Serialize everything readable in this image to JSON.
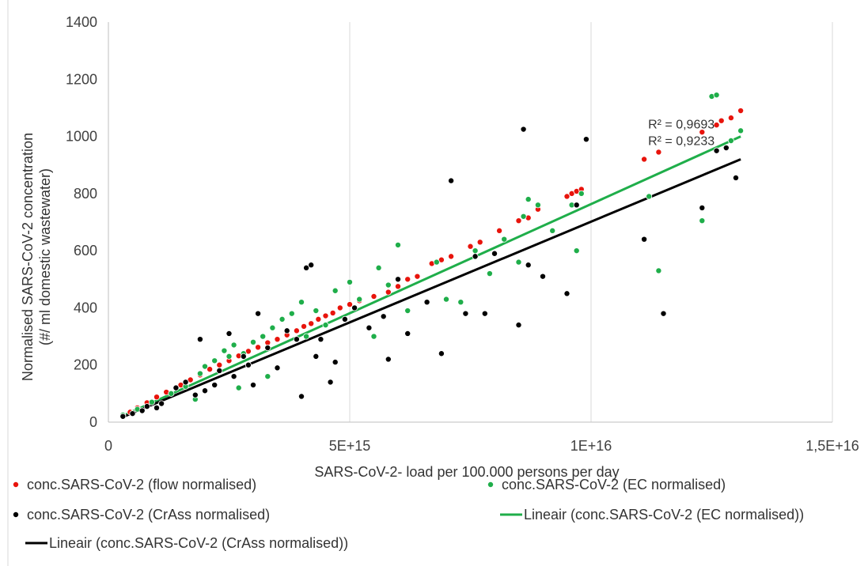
{
  "chart_data": {
    "type": "scatter",
    "title": "",
    "xlabel": "SARS-CoV-2- load per 100.000 persons per day",
    "ylabel_line1": "Normalised SARS-CoV-2 concentration",
    "ylabel_line2": "(#/ ml domestic wastewater)",
    "xlim": [
      0,
      1.5e+16
    ],
    "ylim": [
      0,
      1400
    ],
    "x_ticks": [
      0,
      5000000000000000.0,
      1e+16,
      1.5e+16
    ],
    "x_tick_labels": [
      "0",
      "5E+15",
      "1E+16",
      "1,5E+16"
    ],
    "y_ticks": [
      0,
      200,
      400,
      600,
      800,
      1000,
      1200,
      1400
    ],
    "y_tick_labels": [
      "0",
      "200",
      "400",
      "600",
      "800",
      "1000",
      "1200",
      "1400"
    ],
    "grid": "vertical",
    "legend_position": "bottom",
    "series": [
      {
        "name": "conc.SARS-CoV-2 (flow normalised)",
        "color": "#e8140c",
        "points": [
          [
            300000000000000.0,
            22
          ],
          [
            450000000000000.0,
            35
          ],
          [
            600000000000000.0,
            50
          ],
          [
            800000000000000.0,
            68
          ],
          [
            1000000000000000.0,
            88
          ],
          [
            1200000000000000.0,
            105
          ],
          [
            1500000000000000.0,
            130
          ],
          [
            1700000000000000.0,
            148
          ],
          [
            1900000000000000.0,
            165
          ],
          [
            2100000000000000.0,
            185
          ],
          [
            2300000000000000.0,
            200
          ],
          [
            2500000000000000.0,
            215
          ],
          [
            2700000000000000.0,
            232
          ],
          [
            2900000000000000.0,
            248
          ],
          [
            3100000000000000.0,
            262
          ],
          [
            3300000000000000.0,
            278
          ],
          [
            3500000000000000.0,
            290
          ],
          [
            3700000000000000.0,
            305
          ],
          [
            3900000000000000.0,
            320
          ],
          [
            4050000000000000.0,
            335
          ],
          [
            4200000000000000.0,
            345
          ],
          [
            4350000000000000.0,
            360
          ],
          [
            4500000000000000.0,
            372
          ],
          [
            4650000000000000.0,
            382
          ],
          [
            4800000000000000.0,
            400
          ],
          [
            5000000000000000.0,
            412
          ],
          [
            5200000000000000.0,
            425
          ],
          [
            5500000000000000.0,
            440
          ],
          [
            5800000000000000.0,
            455
          ],
          [
            6000000000000000.0,
            475
          ],
          [
            6200000000000000.0,
            500
          ],
          [
            6400000000000000.0,
            510
          ],
          [
            6700000000000000.0,
            555
          ],
          [
            6900000000000000.0,
            568
          ],
          [
            7100000000000000.0,
            580
          ],
          [
            7500000000000000.0,
            615
          ],
          [
            7700000000000000.0,
            630
          ],
          [
            8100000000000000.0,
            670
          ],
          [
            8500000000000000.0,
            705
          ],
          [
            8700000000000000.0,
            715
          ],
          [
            8900000000000000.0,
            745
          ],
          [
            9500000000000000.0,
            790
          ],
          [
            9600000000000000.0,
            800
          ],
          [
            9700000000000000.0,
            808
          ],
          [
            9800000000000000.0,
            815
          ],
          [
            1.11e+16,
            920
          ],
          [
            1.14e+16,
            945
          ],
          [
            1.23e+16,
            1015
          ],
          [
            1.26e+16,
            1040
          ],
          [
            1.27e+16,
            1055
          ],
          [
            1.29e+16,
            1065
          ],
          [
            1.31e+16,
            1090
          ]
        ]
      },
      {
        "name": "conc.SARS-CoV-2 (EC normalised)",
        "color": "#1fae4a",
        "points": [
          [
            300000000000000.0,
            25
          ],
          [
            600000000000000.0,
            45
          ],
          [
            900000000000000.0,
            70
          ],
          [
            1300000000000000.0,
            100
          ],
          [
            1600000000000000.0,
            125
          ],
          [
            1800000000000000.0,
            80
          ],
          [
            1900000000000000.0,
            170
          ],
          [
            2000000000000000.0,
            195
          ],
          [
            2200000000000000.0,
            215
          ],
          [
            2400000000000000.0,
            250
          ],
          [
            2500000000000000.0,
            230
          ],
          [
            2600000000000000.0,
            270
          ],
          [
            2700000000000000.0,
            120
          ],
          [
            2800000000000000.0,
            240
          ],
          [
            3000000000000000.0,
            280
          ],
          [
            3200000000000000.0,
            300
          ],
          [
            3300000000000000.0,
            160
          ],
          [
            3400000000000000.0,
            330
          ],
          [
            3600000000000000.0,
            360
          ],
          [
            3800000000000000.0,
            380
          ],
          [
            4000000000000000.0,
            420
          ],
          [
            4100000000000000.0,
            300
          ],
          [
            4300000000000000.0,
            390
          ],
          [
            4500000000000000.0,
            340
          ],
          [
            4700000000000000.0,
            460
          ],
          [
            5000000000000000.0,
            490
          ],
          [
            5200000000000000.0,
            430
          ],
          [
            5500000000000000.0,
            300
          ],
          [
            5600000000000000.0,
            540
          ],
          [
            5800000000000000.0,
            480
          ],
          [
            6000000000000000.0,
            620
          ],
          [
            6200000000000000.0,
            390
          ],
          [
            6800000000000000.0,
            560
          ],
          [
            7000000000000000.0,
            430
          ],
          [
            7300000000000000.0,
            420
          ],
          [
            7600000000000000.0,
            600
          ],
          [
            7900000000000000.0,
            520
          ],
          [
            8200000000000000.0,
            640
          ],
          [
            8500000000000000.0,
            560
          ],
          [
            8600000000000000.0,
            720
          ],
          [
            8700000000000000.0,
            780
          ],
          [
            8900000000000000.0,
            760
          ],
          [
            9200000000000000.0,
            670
          ],
          [
            9600000000000000.0,
            760
          ],
          [
            9700000000000000.0,
            600
          ],
          [
            9800000000000000.0,
            800
          ],
          [
            1.12e+16,
            790
          ],
          [
            1.14e+16,
            530
          ],
          [
            1.23e+16,
            705
          ],
          [
            1.25e+16,
            1140
          ],
          [
            1.26e+16,
            1145
          ],
          [
            1.29e+16,
            985
          ],
          [
            1.31e+16,
            1020
          ]
        ]
      },
      {
        "name": "conc.SARS-CoV-2 (CrAss normalised)",
        "color": "#000000",
        "points": [
          [
            300000000000000.0,
            20
          ],
          [
            500000000000000.0,
            30
          ],
          [
            700000000000000.0,
            40
          ],
          [
            800000000000000.0,
            55
          ],
          [
            1000000000000000.0,
            50
          ],
          [
            1100000000000000.0,
            65
          ],
          [
            1400000000000000.0,
            120
          ],
          [
            1600000000000000.0,
            140
          ],
          [
            1800000000000000.0,
            95
          ],
          [
            1900000000000000.0,
            290
          ],
          [
            2000000000000000.0,
            110
          ],
          [
            2200000000000000.0,
            130
          ],
          [
            2300000000000000.0,
            180
          ],
          [
            2500000000000000.0,
            310
          ],
          [
            2600000000000000.0,
            160
          ],
          [
            2800000000000000.0,
            230
          ],
          [
            2900000000000000.0,
            200
          ],
          [
            3000000000000000.0,
            130
          ],
          [
            3100000000000000.0,
            380
          ],
          [
            3300000000000000.0,
            260
          ],
          [
            3500000000000000.0,
            190
          ],
          [
            3700000000000000.0,
            320
          ],
          [
            3900000000000000.0,
            290
          ],
          [
            4000000000000000.0,
            90
          ],
          [
            4100000000000000.0,
            540
          ],
          [
            4200000000000000.0,
            550
          ],
          [
            4300000000000000.0,
            230
          ],
          [
            4400000000000000.0,
            290
          ],
          [
            4600000000000000.0,
            140
          ],
          [
            4700000000000000.0,
            210
          ],
          [
            4900000000000000.0,
            360
          ],
          [
            5100000000000000.0,
            400
          ],
          [
            5400000000000000.0,
            330
          ],
          [
            5700000000000000.0,
            370
          ],
          [
            5800000000000000.0,
            220
          ],
          [
            6000000000000000.0,
            500
          ],
          [
            6200000000000000.0,
            310
          ],
          [
            6600000000000000.0,
            420
          ],
          [
            6900000000000000.0,
            240
          ],
          [
            7100000000000000.0,
            845
          ],
          [
            7400000000000000.0,
            380
          ],
          [
            7600000000000000.0,
            580
          ],
          [
            7800000000000000.0,
            380
          ],
          [
            8000000000000000.0,
            590
          ],
          [
            8500000000000000.0,
            340
          ],
          [
            8600000000000000.0,
            1025
          ],
          [
            8700000000000000.0,
            550
          ],
          [
            9000000000000000.0,
            510
          ],
          [
            9500000000000000.0,
            450
          ],
          [
            9700000000000000.0,
            760
          ],
          [
            9900000000000000.0,
            990
          ],
          [
            1.11e+16,
            640
          ],
          [
            1.15e+16,
            380
          ],
          [
            1.23e+16,
            750
          ],
          [
            1.26e+16,
            950
          ],
          [
            1.28e+16,
            960
          ],
          [
            1.3e+16,
            855
          ]
        ]
      }
    ],
    "trendlines": [
      {
        "name": "Lineair (conc.SARS-CoV-2 (EC normalised))",
        "color": "#1fae4a",
        "x": [
          300000000000000.0,
          1.31e+16
        ],
        "y": [
          22,
          1000
        ],
        "r2_label": "R² = 0,9693"
      },
      {
        "name": "Lineair (conc.SARS-CoV-2 (CrAss normalised))",
        "color": "#000000",
        "x": [
          300000000000000.0,
          1.31e+16
        ],
        "y": [
          18,
          920
        ],
        "r2_label": "R² = 0,9233"
      }
    ]
  }
}
